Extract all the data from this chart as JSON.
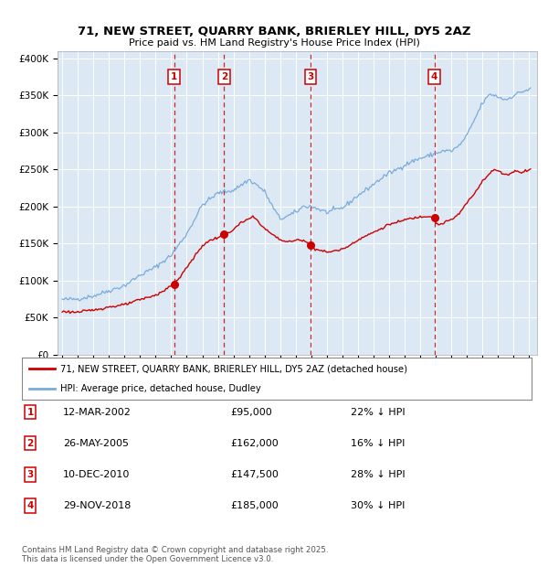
{
  "title": "71, NEW STREET, QUARRY BANK, BRIERLEY HILL, DY5 2AZ",
  "subtitle": "Price paid vs. HM Land Registry's House Price Index (HPI)",
  "background_color": "#dce9f5",
  "plot_bg_color": "#dce9f5",
  "ylim": [
    0,
    410000
  ],
  "yticks": [
    0,
    50000,
    100000,
    150000,
    200000,
    250000,
    300000,
    350000,
    400000
  ],
  "ytick_labels": [
    "£0",
    "£50K",
    "£100K",
    "£150K",
    "£200K",
    "£250K",
    "£300K",
    "£350K",
    "£400K"
  ],
  "xlim_start": 1994.7,
  "xlim_end": 2025.5,
  "transactions": [
    {
      "num": 1,
      "date": "12-MAR-2002",
      "price": 95000,
      "pct": "22%",
      "x": 2002.19
    },
    {
      "num": 2,
      "date": "26-MAY-2005",
      "price": 162000,
      "pct": "16%",
      "x": 2005.4
    },
    {
      "num": 3,
      "date": "10-DEC-2010",
      "price": 147500,
      "pct": "28%",
      "x": 2010.94
    },
    {
      "num": 4,
      "date": "29-NOV-2018",
      "price": 185000,
      "pct": "30%",
      "x": 2018.91
    }
  ],
  "red_line_color": "#cc0000",
  "blue_line_color": "#7aabdb",
  "dashed_line_color": "#cc0000",
  "legend_label_red": "71, NEW STREET, QUARRY BANK, BRIERLEY HILL, DY5 2AZ (detached house)",
  "legend_label_blue": "HPI: Average price, detached house, Dudley",
  "footnote": "Contains HM Land Registry data © Crown copyright and database right 2025.\nThis data is licensed under the Open Government Licence v3.0.",
  "grid_color": "#ffffff"
}
